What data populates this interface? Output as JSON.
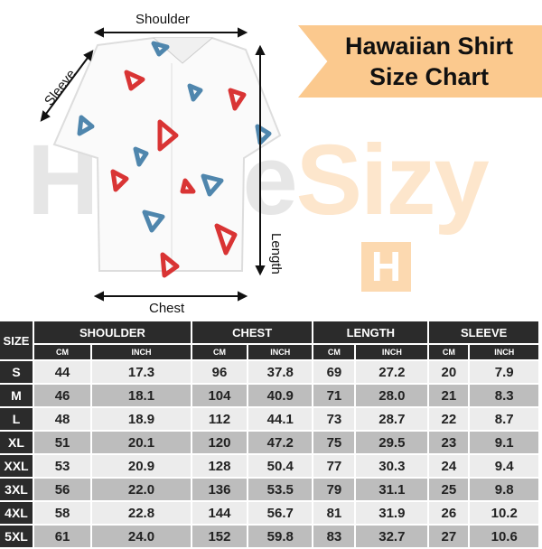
{
  "title": {
    "line1": "Hawaiian Shirt",
    "line2": "Size Chart"
  },
  "watermark": {
    "text_a": "Home",
    "text_b": "Sizy",
    "logo": "H"
  },
  "labels": {
    "shoulder": "Shoulder",
    "sleeve": "Sleeve",
    "length": "Length",
    "chest": "Chest"
  },
  "colors": {
    "banner": "#fbc98e",
    "header": "#2b2b2b",
    "row_light": "#ececec",
    "row_dark": "#bdbdbd",
    "red": "#d93434",
    "blue": "#4f86ad"
  },
  "table": {
    "size_header": "SIZE",
    "groups": [
      "SHOULDER",
      "CHEST",
      "LENGTH",
      "SLEEVE"
    ],
    "units": [
      "CM",
      "INCH",
      "CM",
      "INCH",
      "CM",
      "INCH",
      "CM",
      "INCH"
    ],
    "rows": [
      [
        "S",
        "44",
        "17.3",
        "96",
        "37.8",
        "69",
        "27.2",
        "20",
        "7.9"
      ],
      [
        "M",
        "46",
        "18.1",
        "104",
        "40.9",
        "71",
        "28.0",
        "21",
        "8.3"
      ],
      [
        "L",
        "48",
        "18.9",
        "112",
        "44.1",
        "73",
        "28.7",
        "22",
        "8.7"
      ],
      [
        "XL",
        "51",
        "20.1",
        "120",
        "47.2",
        "75",
        "29.5",
        "23",
        "9.1"
      ],
      [
        "XXL",
        "53",
        "20.9",
        "128",
        "50.4",
        "77",
        "30.3",
        "24",
        "9.4"
      ],
      [
        "3XL",
        "56",
        "22.0",
        "136",
        "53.5",
        "79",
        "31.1",
        "25",
        "9.8"
      ],
      [
        "4XL",
        "58",
        "22.8",
        "144",
        "56.7",
        "81",
        "31.9",
        "26",
        "10.2"
      ],
      [
        "5XL",
        "61",
        "24.0",
        "152",
        "59.8",
        "83",
        "32.7",
        "27",
        "10.6"
      ]
    ]
  }
}
